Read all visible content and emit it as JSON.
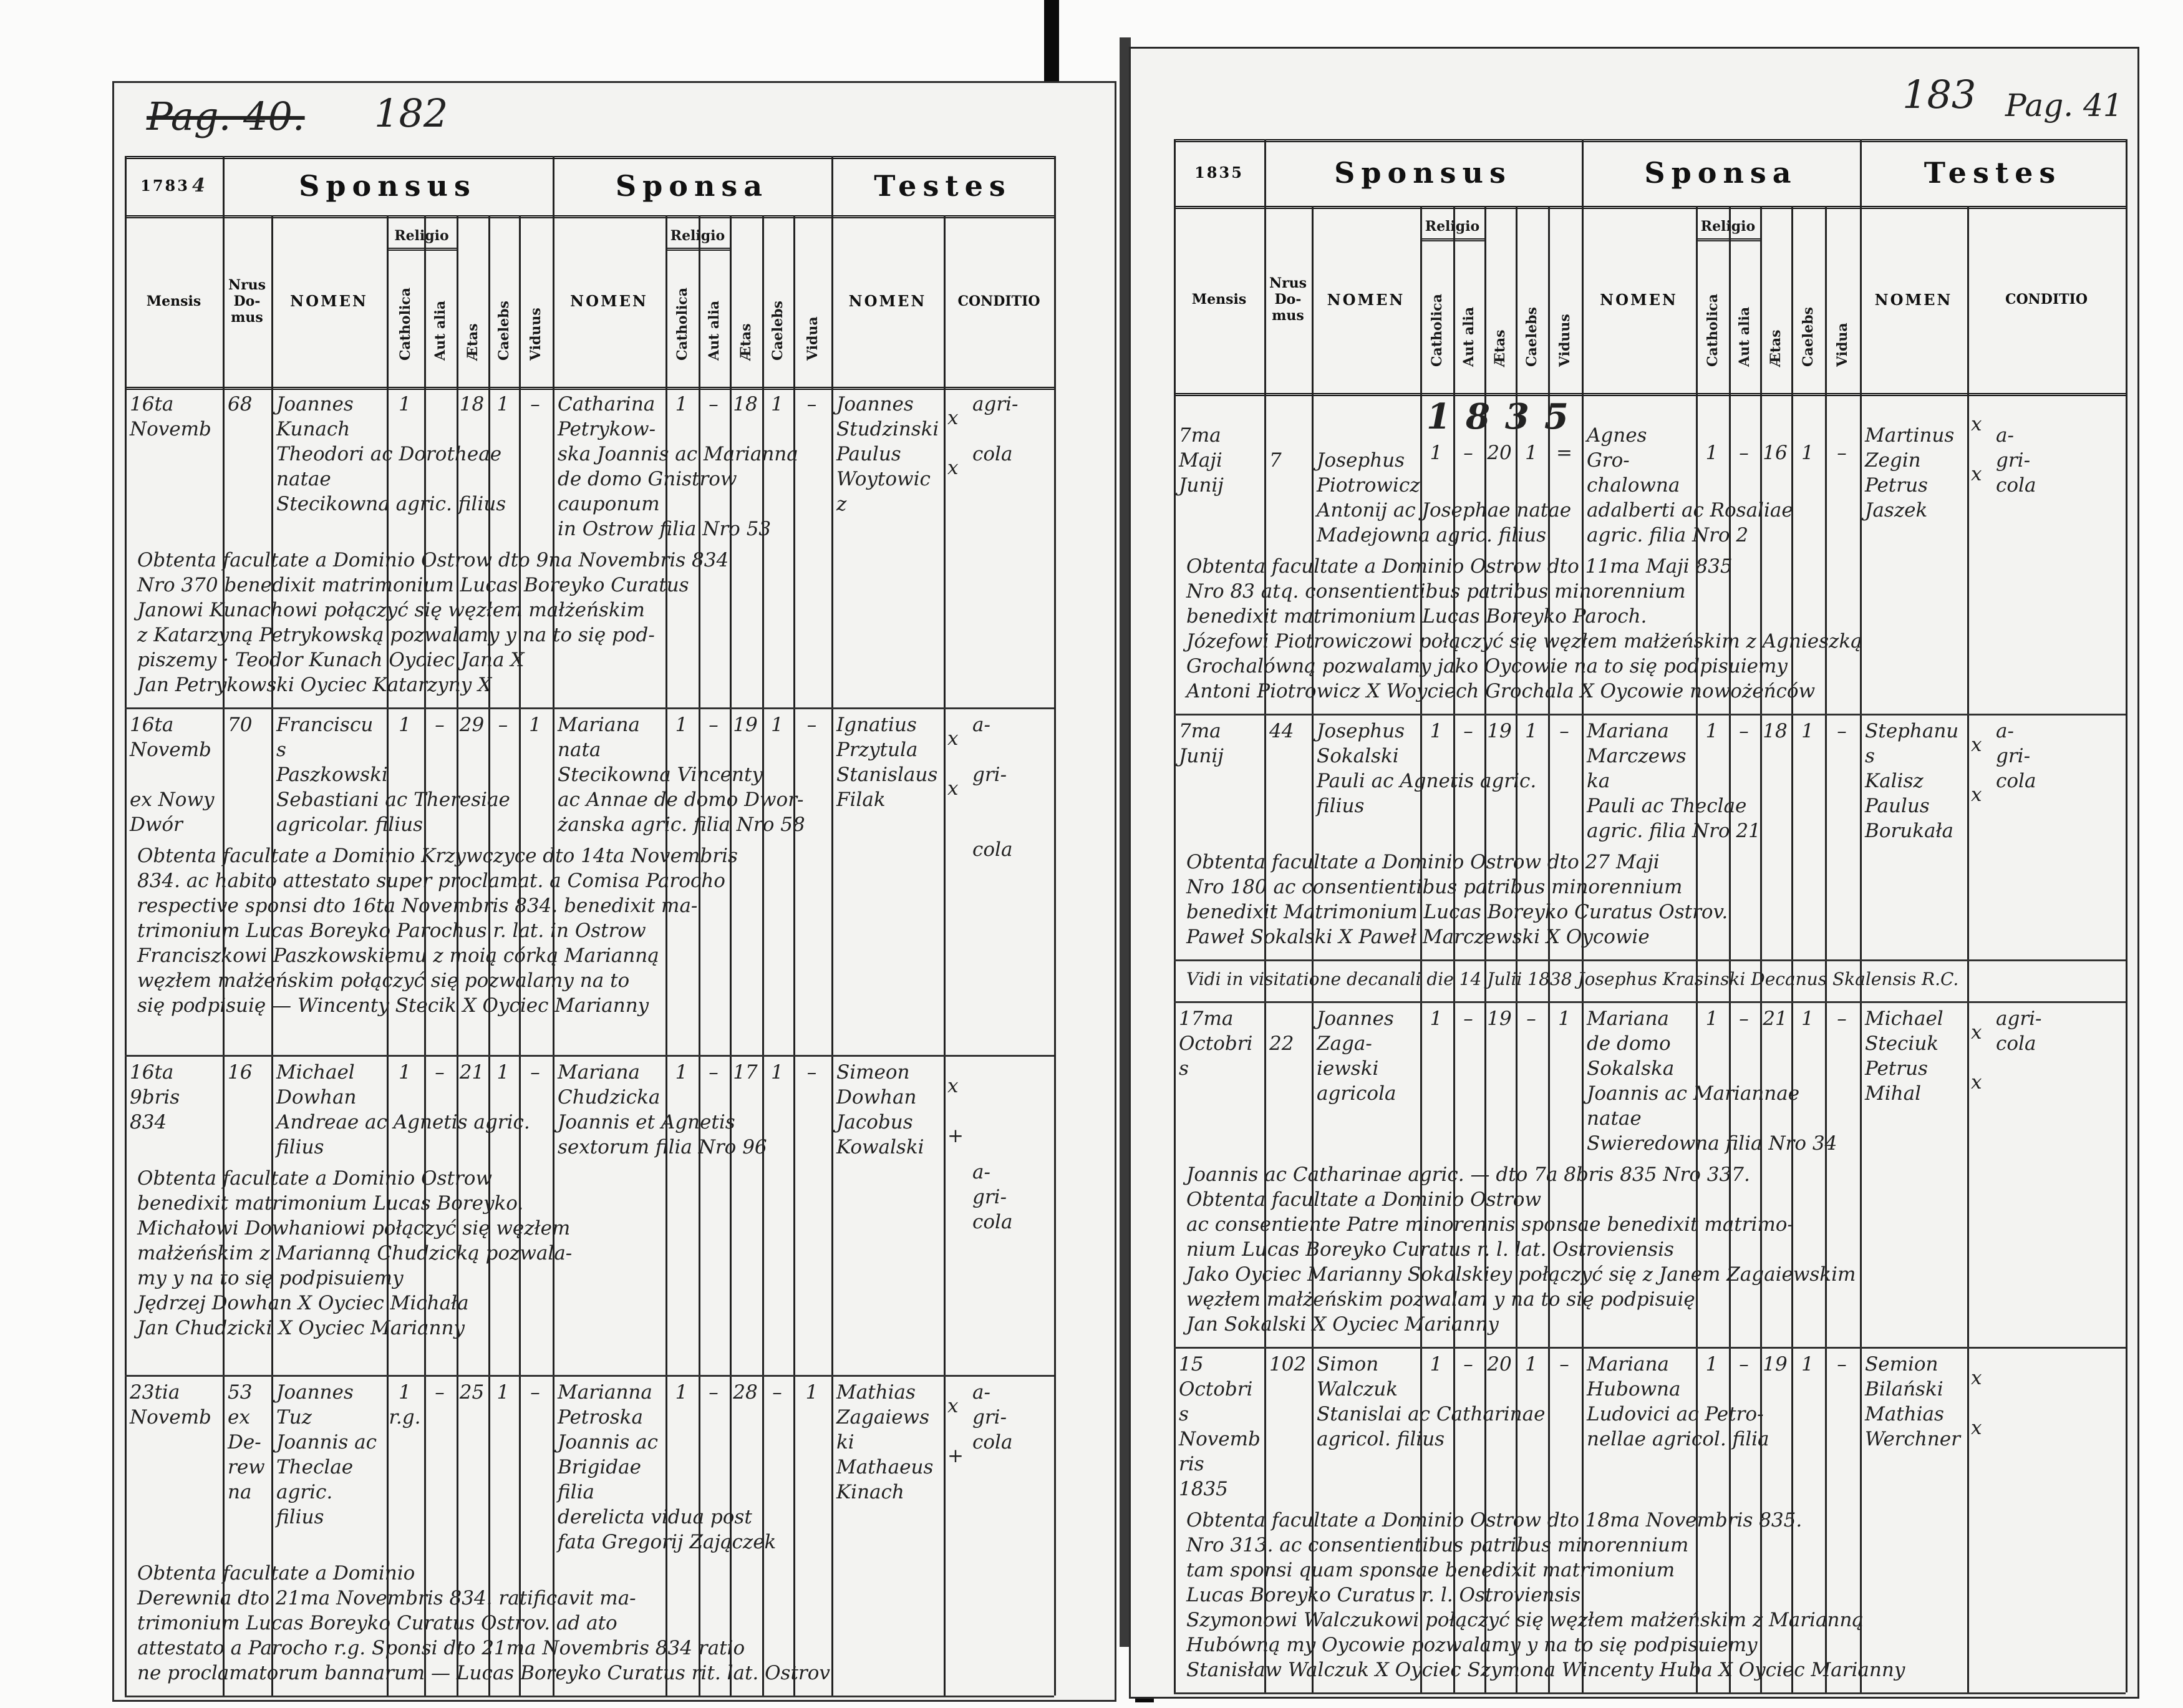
{
  "header": {
    "sponsus": "Sponsus",
    "sponsa": "Sponsa",
    "testes": "Testes",
    "mensis": "Mensis",
    "nrus_domus": [
      "Nrus",
      "Do-",
      "mus"
    ],
    "nomen": "NOMEN",
    "religio": "Religio",
    "catholica": "Catholica",
    "aut_alia": "Aut alia",
    "aetas": "Ætas",
    "caelebs": "Caelebs",
    "viduus": "Viduus",
    "vidua": "Vidua",
    "conditio": "CONDITIO"
  },
  "left_page": {
    "year": "1783",
    "year_hand": "4",
    "page_annotation": "Pag. 40.",
    "page_number": "182",
    "entries": [
      {
        "mensis": [
          "16ta",
          "Novemb"
        ],
        "nrus": [
          "68"
        ],
        "sponsus_nomen": [
          "Joannes",
          "Kunach",
          "Theodori ac Dorotheae natae",
          "Stecikowna agric. filius"
        ],
        "sponsus_marks": [
          "1",
          "",
          "18",
          "1",
          "–"
        ],
        "sponsa_nomen": [
          "Catharina",
          "Petrykow-",
          "ska Joannis ac Marianna",
          "de domo Gnistrow cauponum",
          "in Ostrow filia Nro 53"
        ],
        "sponsa_marks": [
          "1",
          "–",
          "18",
          "1",
          "–"
        ],
        "testes": [
          "Joannes",
          "Studzinski",
          "Paulus",
          "Woytowicz"
        ],
        "testes_marks": [
          "x",
          "x"
        ],
        "conditio": [
          "agri-",
          "",
          "cola"
        ],
        "notes": [
          "Obtenta facultate a Dominio Ostrow dto 9na Novembris 834",
          "Nro 370 benedixit matrimonium Lucas Boreyko Curatus",
          "Janowi Kunachowi połączyć się węzłem małżeńskim",
          "z Katarzyną Petrykowską pozwalamy y na to się pod-",
          "piszemy · Teodor Kunach Oyciec Jana X",
          "Jan Petrykowski Oyciec Katarzyny X"
        ]
      },
      {
        "mensis": [
          "16ta",
          "Novemb",
          "",
          "ex Nowy",
          "Dwór"
        ],
        "nrus": [
          "70"
        ],
        "sponsus_nomen": [
          "Franciscus",
          "Paszkowski",
          "Sebastiani ac Theresiae",
          "agricolar. filius"
        ],
        "sponsus_marks": [
          "1",
          "–",
          "29",
          "–",
          "1"
        ],
        "sponsa_nomen": [
          "Mariana",
          "nata",
          "Stecikowna Vincenty",
          "ac Annae de domo Dwor-",
          "żanska agric. filia Nro 58"
        ],
        "sponsa_marks": [
          "1",
          "–",
          "19",
          "1",
          "–"
        ],
        "testes": [
          "Ignatius",
          "Przytula",
          "Stanislaus",
          "Filak"
        ],
        "testes_marks": [
          "x",
          "x"
        ],
        "conditio": [
          "a-",
          "",
          "gri-",
          "",
          "",
          "cola"
        ],
        "notes": [
          "Obtenta facultate a Dominio Krzywczyce dto 14ta Novembris",
          "834. ac habito attestato super proclamat. a Comisa Parocho",
          "respective sponsi dto 16ta Novembris 834. benedixit ma-",
          "trimonium Lucas Boreyko Parochus r. lat. in Ostrow",
          "Franciszkowi Paszkowskiemu z moią córką Marianną",
          "węzłem małżeńskim połączyć się pozwalamy na to",
          "się podpisuię — Wincenty Stecik X Oyciec Marianny"
        ]
      },
      {
        "mensis": [
          "16ta",
          "9bris",
          "834"
        ],
        "nrus": [
          "16"
        ],
        "sponsus_nomen": [
          "Michael",
          "Dowhan",
          "Andreae ac Agnetis agric. filius"
        ],
        "sponsus_marks": [
          "1",
          "–",
          "21",
          "1",
          "–"
        ],
        "sponsa_nomen": [
          "Mariana",
          "Chudzicka",
          "Joannis et Agnetis",
          "sextorum filia Nro 96"
        ],
        "sponsa_marks": [
          "1",
          "–",
          "17",
          "1",
          "–"
        ],
        "testes": [
          "Simeon",
          "Dowhan",
          "Jacobus",
          "Kowalski"
        ],
        "testes_marks": [
          "x",
          "+"
        ],
        "conditio": [
          "",
          "",
          "",
          "",
          "a-",
          "gri-",
          "cola"
        ],
        "notes": [
          "Obtenta facultate a Dominio Ostrow",
          "benedixit matrimonium Lucas Boreyko.",
          "Michałowi Dowhaniowi połączyć się węzłem",
          "małżeńskim z Marianną Chudzicką pozwala-",
          "my y na to się podpisuiemy",
          "Jędrzej Dowhan X Oyciec Michała",
          "Jan Chudzicki X Oyciec Marianny"
        ]
      },
      {
        "mensis": [
          "23tia",
          "Novemb"
        ],
        "nrus": [
          "53",
          "ex De-",
          "rewna"
        ],
        "sponsus_nomen": [
          "Joannes",
          "Tuz",
          "Joannis ac Theclae agric. filius"
        ],
        "sponsus_marks": [
          "1 r.g.",
          "–",
          "25",
          "1",
          "–"
        ],
        "sponsa_nomen": [
          "Marianna",
          "Petroska",
          "Joannis ac Brigidae filia",
          "derelicta vidua post",
          "fata Gregorij Zajączek"
        ],
        "sponsa_marks": [
          "1",
          "–",
          "28",
          "–",
          "1"
        ],
        "testes": [
          "Mathias",
          "Zagaiewski",
          "Mathaeus",
          "Kinach"
        ],
        "testes_marks": [
          "x",
          "+"
        ],
        "conditio": [
          "a-",
          "gri-",
          "cola"
        ],
        "notes": [
          "Obtenta facultate a Dominio",
          "Derewnia dto 21ma Novembris 834. ratificavit ma-",
          "trimonium Lucas Boreyko Curatus Ostrov. ad ato",
          "attestato a Parocho r.g. Sponsi dto 21ma Novembris 834 ratio",
          "ne proclamatorum bannarum — Lucas Boreyko Curatus rit. lat. Ostrov"
        ]
      }
    ]
  },
  "right_page": {
    "year": "1835",
    "page_number": "183",
    "page_annotation": "Pag. 41",
    "attestation": "Vidi in visitatione decanali die 14 Julii 1838 Josephus Krasinski Decanus Skalensis R.C.",
    "entries": [
      {
        "year_mark": "1835",
        "mensis": [
          "",
          "7ma",
          "Maji",
          "Junij"
        ],
        "nrus": [
          "",
          "",
          "7"
        ],
        "sponsus_nomen": [
          "",
          "",
          "Josephus",
          "Piotrowicz",
          "Antonij ac Josephae natae",
          "Madejowna agric. filius"
        ],
        "sponsus_marks": [
          "1",
          "–",
          "20",
          "1",
          "="
        ],
        "sponsa_nomen": [
          "",
          "Agnes Gro-",
          "chalowna",
          "adalberti ac Rosaliae",
          "agric. filia Nro 2"
        ],
        "sponsa_marks": [
          "1",
          "–",
          "16",
          "1",
          "–"
        ],
        "testes": [
          "",
          "Martinus",
          "Zegin",
          "Petrus",
          "Jaszek"
        ],
        "testes_marks": [
          "x",
          "x"
        ],
        "conditio": [
          "",
          "a-",
          "gri-",
          "cola"
        ],
        "notes": [
          "Obtenta facultate a Dominio Ostrow dto 11ma Maji 835",
          "Nro 83 atq. consentientibus patribus minorennium",
          "benedixit matrimonium Lucas Boreyko Paroch.",
          "Józefowi Piotrowiczowi połączyć się węzłem małżeńskim z Agnieszką",
          "Grochalówną pozwalamy jako Oycowie na to się podpisuiemy",
          "Antoni Piotrowicz X   Woyciech Grochala X   Oycowie nowożeńców"
        ]
      },
      {
        "mensis": [
          "7ma",
          "Junij"
        ],
        "nrus": [
          "44"
        ],
        "sponsus_nomen": [
          "Josephus",
          "Sokalski",
          "Pauli ac Agnetis agric.",
          "filius"
        ],
        "sponsus_marks": [
          "1",
          "–",
          "19",
          "1",
          "–"
        ],
        "sponsa_nomen": [
          "Mariana",
          "Marczewska",
          "Pauli ac Theclae",
          "agric. filia Nro 21"
        ],
        "sponsa_marks": [
          "1",
          "–",
          "18",
          "1",
          "–"
        ],
        "testes": [
          "Stephanus",
          "Kalisz",
          "Paulus",
          "Borukała"
        ],
        "testes_marks": [
          "x",
          "x"
        ],
        "conditio": [
          "a-",
          "gri-",
          "cola"
        ],
        "notes": [
          "Obtenta facultate a Dominio Ostrow dto 27 Maji",
          "Nro 180 ac consentientibus patribus minorennium",
          "benedixit Matrimonium Lucas Boreyko Curatus Ostrov.",
          "Paweł Sokalski X   Paweł Marczewski X Oycowie"
        ]
      },
      {
        "mensis": [
          "17ma",
          "Octobris"
        ],
        "nrus": [
          "",
          "22"
        ],
        "sponsus_nomen": [
          "Joannes",
          "Zaga-",
          "iewski",
          "agricola"
        ],
        "sponsus_marks": [
          "1",
          "–",
          "19",
          "–",
          "1"
        ],
        "sponsa_nomen": [
          "Mariana",
          "de domo",
          "Sokalska",
          "Joannis ac Mariannae natae",
          "Swieredowna filia Nro 34"
        ],
        "sponsa_marks": [
          "1",
          "–",
          "21",
          "1",
          "–"
        ],
        "testes": [
          "Michael",
          "Steciuk",
          "Petrus",
          "Mihal"
        ],
        "testes_marks": [
          "x",
          "x"
        ],
        "conditio": [
          "agri-",
          "cola"
        ],
        "notes": [
          "Joannis ac Catharinae agric. — dto 7a 8bris 835 Nro 337.",
          "Obtenta facultate a Dominio Ostrow",
          "ac consentiente Patre minorennis sponsae benedixit matrimo-",
          "nium Lucas Boreyko Curatus r. l. lat. Ostroviensis",
          "Jako Oyciec Marianny Sokalskiey połączyć się z Janem Zagaiewskim",
          "węzłem małżeńskim pozwalam y na to się podpisuię",
          "Jan Sokalski X Oyciec Marianny"
        ]
      },
      {
        "mensis": [
          "15",
          "Octobris",
          "Novembris",
          "1835"
        ],
        "nrus": [
          "102"
        ],
        "sponsus_nomen": [
          "Simon",
          "Walczuk",
          "Stanislai ac Catharinae",
          "agricol. filius"
        ],
        "sponsus_marks": [
          "1",
          "–",
          "20",
          "1",
          "–"
        ],
        "sponsa_nomen": [
          "Mariana",
          "Hubowna",
          "Ludovici ac Petro-",
          "nellae agricol. filia"
        ],
        "sponsa_marks": [
          "1",
          "–",
          "19",
          "1",
          "–"
        ],
        "testes": [
          "Semion",
          "Bilański",
          "Mathias",
          "Werchner"
        ],
        "testes_marks": [
          "x",
          "x"
        ],
        "conditio": [],
        "notes": [
          "Obtenta facultate a Dominio Ostrow dto 18ma Novembris 835.",
          "Nro 313. ac consentientibus patribus minorennium",
          "tam sponsi quam sponsae benedixit matrimonium",
          "Lucas Boreyko Curatus r. l. Ostroviensis",
          "Szymonowi Walczukowi połączyć się węzłem małżeńskim z Marianną",
          "Hubówną my Oycowie pozwalamy y na to się podpisuiemy",
          "Stanisław Walczuk X Oyciec Szymona   Wincenty Huba X Oyciec Marianny"
        ]
      }
    ]
  }
}
